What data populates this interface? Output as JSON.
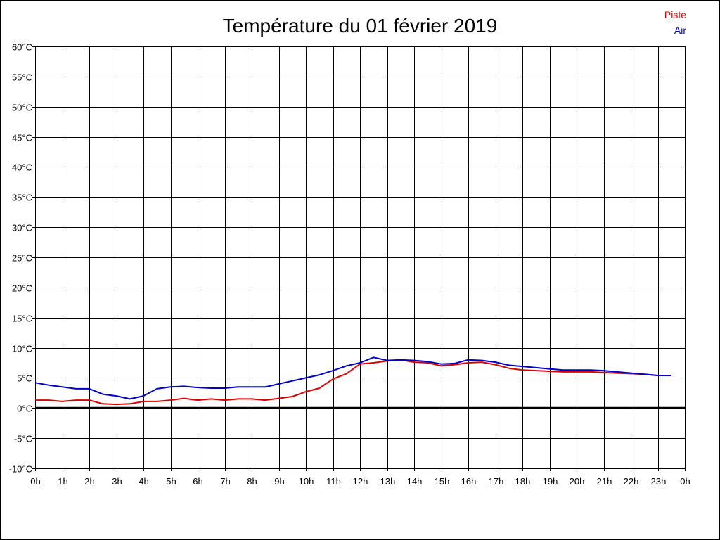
{
  "chart_data": {
    "type": "line",
    "title": "Température du 01 février 2019",
    "xlabel": "",
    "ylabel": "",
    "x_tick_labels": [
      "0h",
      "1h",
      "2h",
      "3h",
      "4h",
      "5h",
      "6h",
      "7h",
      "8h",
      "9h",
      "10h",
      "11h",
      "12h",
      "13h",
      "14h",
      "15h",
      "16h",
      "17h",
      "18h",
      "19h",
      "20h",
      "21h",
      "22h",
      "23h",
      "0h"
    ],
    "x_range_hours": [
      0,
      24
    ],
    "y_unit": "°C",
    "ylim": [
      -10,
      60
    ],
    "y_tick_step": 5,
    "x_grid_step_hours": 1,
    "grid": true,
    "zero_line": true,
    "legend_position": "top-right",
    "x": [
      0,
      0.5,
      1,
      1.5,
      2,
      2.5,
      3,
      3.5,
      4,
      4.5,
      5,
      5.5,
      6,
      6.5,
      7,
      7.5,
      8,
      8.5,
      9,
      9.5,
      10,
      10.5,
      11,
      11.5,
      12,
      12.5,
      13,
      13.5,
      14,
      14.5,
      15,
      15.5,
      16,
      16.5,
      17,
      17.5,
      18,
      18.5,
      19,
      19.5,
      20,
      20.5,
      21,
      21.5,
      22,
      22.5,
      23,
      23.5
    ],
    "series": [
      {
        "name": "Piste",
        "color": "#dd0000",
        "values": [
          1.3,
          1.3,
          1.1,
          1.3,
          1.3,
          0.7,
          0.6,
          0.7,
          1.1,
          1.1,
          1.3,
          1.6,
          1.3,
          1.5,
          1.3,
          1.5,
          1.5,
          1.3,
          1.6,
          1.9,
          2.7,
          3.3,
          4.8,
          5.7,
          7.3,
          7.5,
          7.8,
          8.0,
          7.6,
          7.5,
          7.0,
          7.2,
          7.5,
          7.6,
          7.2,
          6.6,
          6.3,
          6.2,
          6.1,
          6.0,
          6.0,
          6.0,
          5.9,
          5.8,
          5.7,
          5.6,
          5.4,
          5.4
        ]
      },
      {
        "name": "Air",
        "color": "#0000cc",
        "values": [
          4.2,
          3.8,
          3.5,
          3.2,
          3.2,
          2.3,
          2.0,
          1.5,
          2.0,
          3.2,
          3.5,
          3.6,
          3.4,
          3.3,
          3.3,
          3.5,
          3.5,
          3.5,
          4.0,
          4.5,
          5.0,
          5.5,
          6.2,
          7.0,
          7.5,
          8.4,
          7.9,
          8.0,
          7.9,
          7.7,
          7.3,
          7.4,
          8.0,
          7.9,
          7.6,
          7.1,
          6.9,
          6.7,
          6.5,
          6.3,
          6.3,
          6.3,
          6.2,
          6.0,
          5.8,
          5.6,
          5.4,
          5.4
        ]
      }
    ]
  }
}
